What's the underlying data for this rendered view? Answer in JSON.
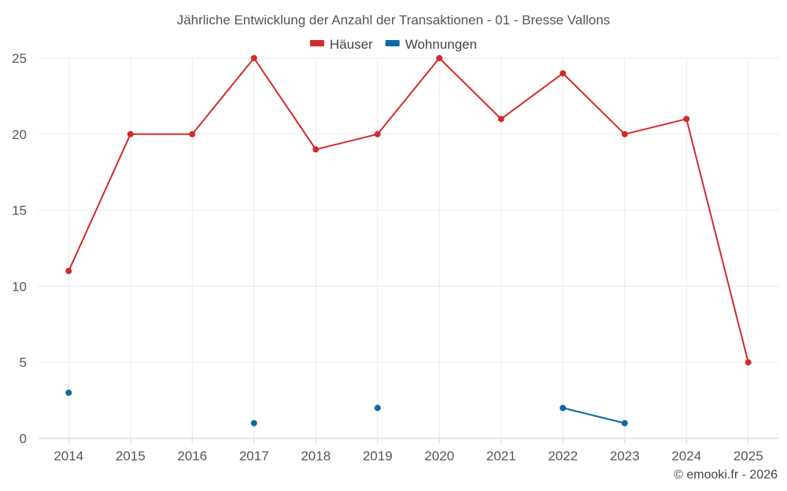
{
  "chart_data": {
    "type": "line",
    "title": "Jährliche Entwicklung der Anzahl der Transaktionen - 01 - Bresse Vallons",
    "categories": [
      "2014",
      "2015",
      "2016",
      "2017",
      "2018",
      "2019",
      "2020",
      "2021",
      "2022",
      "2023",
      "2024",
      "2025"
    ],
    "ylim": [
      0,
      25
    ],
    "yticks": [
      0,
      5,
      10,
      15,
      20,
      25
    ],
    "grid": true,
    "legend_position": "top-center",
    "series": [
      {
        "name": "Häuser",
        "color": "#d32a2a",
        "values": [
          11,
          20,
          20,
          25,
          19,
          20,
          25,
          21,
          24,
          20,
          21,
          5
        ]
      },
      {
        "name": "Wohnungen",
        "color": "#0b6aa2",
        "values": [
          3,
          null,
          null,
          1,
          null,
          2,
          null,
          null,
          2,
          1,
          null,
          null
        ]
      }
    ],
    "credit": "© emooki.fr - 2026"
  }
}
